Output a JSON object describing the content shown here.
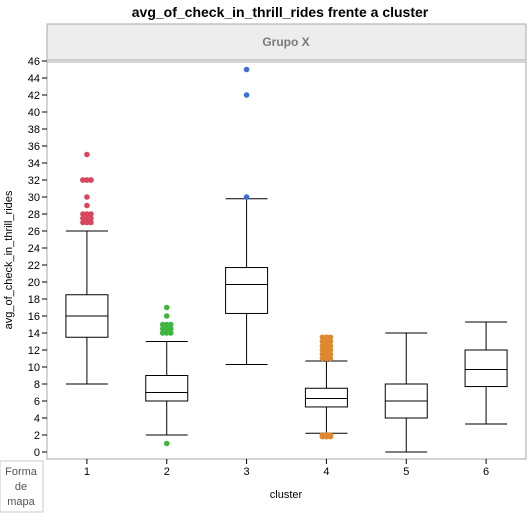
{
  "chart_data": {
    "type": "boxplot",
    "title": "avg_of_check_in_thrill_rides frente a cluster",
    "group_header": "Grupo X",
    "xlabel": "cluster",
    "ylabel": "avg_of_check_in_thrill_rides",
    "ylim": [
      0,
      46
    ],
    "y_ticks": [
      "0",
      "2",
      "4",
      "6",
      "8",
      "10",
      "12",
      "14",
      "16",
      "18",
      "20",
      "22",
      "24",
      "26",
      "28",
      "30",
      "32",
      "34",
      "36",
      "38",
      "40",
      "42",
      "44",
      "46"
    ],
    "categories": [
      "1",
      "2",
      "3",
      "4",
      "5",
      "6"
    ],
    "legend_stub": [
      "Forma",
      "de",
      "mapa"
    ],
    "grid": false,
    "boxes": [
      {
        "category": "1",
        "whisker_low": 8.0,
        "q1": 13.5,
        "median": 16.0,
        "q3": 18.5,
        "whisker_high": 26.0,
        "color": "#d9475e",
        "outliers": [
          27.0,
          27.5,
          28.0,
          29.0,
          30.0,
          32.0,
          32.0,
          35.0
        ]
      },
      {
        "category": "2",
        "whisker_low": 2.0,
        "q1": 6.0,
        "median": 7.0,
        "q3": 9.0,
        "whisker_high": 13.0,
        "color": "#3fb53f",
        "outliers": [
          1.0,
          14.0,
          14.5,
          15.0,
          16.0,
          17.0
        ]
      },
      {
        "category": "3",
        "whisker_low": 10.3,
        "q1": 16.3,
        "median": 19.7,
        "q3": 21.7,
        "whisker_high": 29.8,
        "color": "#3a6fd8",
        "outliers": [
          30.0,
          42.0,
          45.0
        ]
      },
      {
        "category": "4",
        "whisker_low": 2.2,
        "q1": 5.3,
        "median": 6.3,
        "q3": 7.5,
        "whisker_high": 10.7,
        "color": "#e0882e",
        "outliers": [
          1.8,
          2.0,
          11.0,
          11.5,
          12.0,
          12.5,
          13.0,
          13.5
        ]
      },
      {
        "category": "5",
        "whisker_low": 0.0,
        "q1": 4.0,
        "median": 6.0,
        "q3": 8.0,
        "whisker_high": 14.0,
        "color": "#000000",
        "outliers": []
      },
      {
        "category": "6",
        "whisker_low": 3.3,
        "q1": 7.7,
        "median": 9.7,
        "q3": 12.0,
        "whisker_high": 15.3,
        "color": "#000000",
        "outliers": []
      }
    ]
  }
}
